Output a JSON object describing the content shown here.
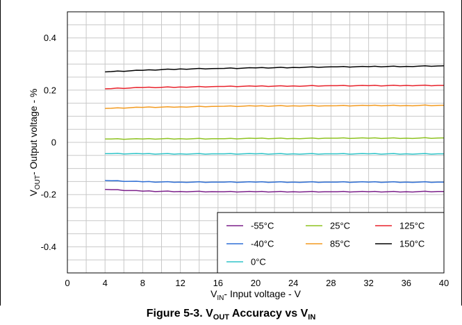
{
  "chart_data": {
    "type": "line",
    "xlabel": {
      "prefix": "V",
      "sub": "IN",
      "rest": "- Input voltage - V"
    },
    "ylabel": {
      "prefix": "V",
      "sub": "OUT",
      "rest": "- Output voltage - %"
    },
    "xlim": [
      0,
      40
    ],
    "ylim": [
      -0.5,
      0.5
    ],
    "x_ticks": [
      "0",
      "4",
      "8",
      "12",
      "16",
      "20",
      "24",
      "28",
      "32",
      "36",
      "40"
    ],
    "y_ticks": [
      "-0.4",
      "-0.2",
      "0",
      "0.2",
      "0.4"
    ],
    "grid": true,
    "legend_position": "bottom-right",
    "x": [
      4,
      8,
      12,
      16,
      20,
      24,
      28,
      32,
      36,
      40
    ],
    "series": [
      {
        "name": "-55°C",
        "color": "#7b1f8a",
        "values": [
          -0.18,
          -0.187,
          -0.188,
          -0.189,
          -0.189,
          -0.189,
          -0.189,
          -0.189,
          -0.189,
          -0.188
        ]
      },
      {
        "name": "25°C",
        "color": "#8dc21f",
        "values": [
          0.013,
          0.013,
          0.014,
          0.014,
          0.015,
          0.015,
          0.016,
          0.016,
          0.016,
          0.017
        ]
      },
      {
        "name": "125°C",
        "color": "#e8202a",
        "values": [
          0.205,
          0.21,
          0.212,
          0.214,
          0.215,
          0.216,
          0.217,
          0.217,
          0.218,
          0.218
        ]
      },
      {
        "name": "-40°C",
        "color": "#2f6fd6",
        "values": [
          -0.146,
          -0.151,
          -0.152,
          -0.152,
          -0.152,
          -0.152,
          -0.152,
          -0.152,
          -0.152,
          -0.152
        ]
      },
      {
        "name": "85°C",
        "color": "#f39a1e",
        "values": [
          0.13,
          0.134,
          0.136,
          0.138,
          0.139,
          0.14,
          0.14,
          0.141,
          0.141,
          0.142
        ]
      },
      {
        "name": "150°C",
        "color": "#000000",
        "values": [
          0.27,
          0.276,
          0.281,
          0.283,
          0.285,
          0.287,
          0.289,
          0.29,
          0.291,
          0.293
        ]
      },
      {
        "name": "0°C",
        "color": "#2ec4c8",
        "values": [
          -0.043,
          -0.044,
          -0.044,
          -0.044,
          -0.044,
          -0.044,
          -0.044,
          -0.044,
          -0.044,
          -0.044
        ]
      }
    ]
  },
  "caption": {
    "prefix": "Figure 5-3. V",
    "sub1": "OUT",
    "middle": " Accuracy vs V",
    "sub2": "IN"
  }
}
